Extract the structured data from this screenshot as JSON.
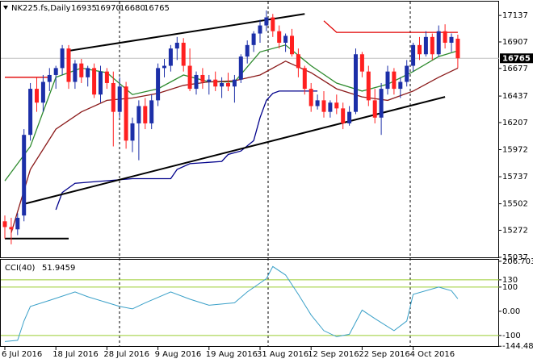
{
  "chart_data": {
    "type": "candlestick",
    "title": "NK225.fs,Daily",
    "up_color": "#1c2fa8",
    "down_color": "#ff2020",
    "categories": [
      "6 Jul 2016",
      null,
      null,
      null,
      null,
      null,
      null,
      null,
      "18 Jul 2016",
      null,
      null,
      null,
      null,
      null,
      null,
      null,
      "28 Jul 2016",
      null,
      null,
      null,
      null,
      null,
      null,
      null,
      "9 Aug 2016",
      null,
      null,
      null,
      null,
      null,
      null,
      null,
      "19 Aug 2016",
      null,
      null,
      null,
      null,
      null,
      null,
      null,
      "31 Aug 2016",
      null,
      null,
      null,
      null,
      null,
      null,
      null,
      "12 Sep 2016",
      null,
      null,
      null,
      null,
      null,
      null,
      null,
      "22 Sep 2016",
      null,
      null,
      null,
      null,
      null,
      null,
      null,
      "4 Oct 2016",
      null,
      null,
      null,
      null,
      null,
      null,
      null
    ],
    "open": [
      15350,
      15300,
      15280,
      15400,
      16100,
      16500,
      16380,
      16560,
      16620,
      16680,
      16850,
      16560,
      16720,
      16600,
      16680,
      16450,
      16650,
      16550,
      16300,
      16520,
      16050,
      16200,
      16350,
      16200,
      16400,
      16680,
      16700,
      16850,
      16900,
      16700,
      16500,
      16620,
      16560,
      16580,
      16520,
      16550,
      16520,
      16580,
      16780,
      16880,
      16980,
      17050,
      17120,
      17000,
      16900,
      16960,
      16800,
      16680,
      16500,
      16350,
      16400,
      16300,
      16380,
      16330,
      16200,
      16300,
      16800,
      16650,
      16400,
      16250,
      16500,
      16650,
      16500,
      16560,
      16700,
      16880,
      16800,
      16950,
      16800,
      17000,
      16900,
      16935
    ],
    "high": [
      15400,
      15380,
      15420,
      16150,
      16550,
      16600,
      16620,
      16680,
      16700,
      16880,
      16880,
      16750,
      16760,
      16700,
      16720,
      16700,
      16680,
      16650,
      16600,
      16560,
      16250,
      16400,
      16420,
      16450,
      16720,
      16760,
      16880,
      16950,
      16940,
      16850,
      16650,
      16680,
      16620,
      16650,
      16600,
      16640,
      16620,
      16800,
      16920,
      17000,
      17100,
      17180,
      17150,
      17050,
      16980,
      17020,
      16850,
      16700,
      16550,
      16450,
      16480,
      16400,
      16450,
      16380,
      16350,
      16850,
      16820,
      16700,
      16500,
      16550,
      16700,
      16680,
      16600,
      16750,
      16900,
      16950,
      17000,
      16980,
      17050,
      17060,
      16980,
      16970
    ],
    "low": [
      15200,
      15150,
      15230,
      15350,
      16050,
      16300,
      16300,
      16480,
      16500,
      16620,
      16500,
      16500,
      16550,
      16520,
      16420,
      16380,
      16500,
      16000,
      16250,
      15980,
      15950,
      15880,
      16150,
      16150,
      16350,
      16600,
      16650,
      16750,
      16650,
      16480,
      16450,
      16500,
      16450,
      16480,
      16420,
      16480,
      16380,
      16550,
      16720,
      16820,
      16900,
      17000,
      16950,
      16850,
      16820,
      16780,
      16600,
      16450,
      16300,
      16320,
      16250,
      16250,
      16280,
      16150,
      16180,
      16280,
      16600,
      16350,
      16200,
      16100,
      16450,
      16450,
      16420,
      16520,
      16650,
      16750,
      16780,
      16750,
      16780,
      16850,
      16820,
      16680
    ],
    "close": [
      15300,
      15280,
      15380,
      16100,
      16500,
      16380,
      16560,
      16620,
      16680,
      16850,
      16560,
      16720,
      16600,
      16680,
      16450,
      16650,
      16550,
      16300,
      16520,
      16050,
      16200,
      16350,
      16200,
      16400,
      16680,
      16700,
      16850,
      16900,
      16700,
      16500,
      16620,
      16560,
      16580,
      16520,
      16550,
      16520,
      16580,
      16780,
      16880,
      16980,
      17050,
      17120,
      17000,
      16900,
      16960,
      16800,
      16680,
      16500,
      16350,
      16400,
      16300,
      16380,
      16330,
      16200,
      16300,
      16800,
      16650,
      16400,
      16250,
      16500,
      16650,
      16500,
      16560,
      16700,
      16880,
      16800,
      16950,
      16800,
      17000,
      16900,
      16950,
      16765
    ],
    "ylim": [
      15037,
      17257
    ],
    "yticks": [
      17137,
      16907,
      16677,
      16437,
      16207,
      15972,
      15737,
      15502,
      15272,
      15037
    ],
    "lines": [
      {
        "color": "#2e8b2e",
        "x": [
          0,
          4,
          8,
          12,
          16,
          20,
          24,
          28,
          32,
          36,
          40,
          44,
          48,
          52,
          56,
          60,
          64,
          68,
          71
        ],
        "values": [
          15700,
          16000,
          16600,
          16680,
          16640,
          16450,
          16500,
          16620,
          16560,
          16560,
          16820,
          16880,
          16700,
          16550,
          16480,
          16540,
          16650,
          16780,
          16830
        ]
      },
      {
        "color": "#8b1a1a",
        "x": [
          1,
          4,
          8,
          12,
          16,
          20,
          24,
          28,
          32,
          36,
          40,
          44,
          48,
          52,
          56,
          60,
          64,
          68,
          71
        ],
        "values": [
          15250,
          15800,
          16150,
          16300,
          16400,
          16420,
          16460,
          16530,
          16560,
          16570,
          16620,
          16740,
          16640,
          16500,
          16430,
          16400,
          16480,
          16600,
          16680
        ]
      },
      {
        "color": "#00008b",
        "x": [
          8,
          9,
          11,
          20,
          26,
          27,
          29,
          34,
          35,
          37,
          39,
          40,
          41,
          42,
          43,
          49
        ],
        "values": [
          15450,
          15600,
          15680,
          15720,
          15720,
          15800,
          15850,
          15870,
          15930,
          15960,
          16050,
          16250,
          16400,
          16460,
          16480,
          16480
        ]
      },
      {
        "color": "#e00000",
        "x": [
          0,
          7
        ],
        "values": [
          16600,
          16600
        ]
      },
      {
        "color": "#e00000",
        "x": [
          50,
          52,
          71
        ],
        "values": [
          17090,
          16990,
          16990
        ]
      },
      {
        "color": "#000000",
        "x": [
          3,
          69
        ],
        "values": [
          15500,
          16430
        ]
      },
      {
        "color": "#000000",
        "x": [
          10,
          47
        ],
        "values": [
          16830,
          17150
        ]
      },
      {
        "color": "#000000",
        "x": [
          0,
          10
        ],
        "values": [
          15200,
          15200
        ]
      }
    ],
    "indicator": {
      "title": "CCI(40)",
      "color": "#3aa0c8",
      "level_color": "#9acd32",
      "x": [
        0,
        2,
        3,
        4,
        7,
        11,
        13,
        18,
        20,
        22,
        26,
        29,
        32,
        36,
        38,
        41,
        42,
        44,
        46,
        48,
        50,
        52,
        54,
        56,
        58,
        61,
        63,
        64,
        68,
        70,
        71
      ],
      "values": [
        -125,
        -120,
        -40,
        20,
        45,
        80,
        60,
        20,
        10,
        35,
        80,
        50,
        25,
        35,
        80,
        135,
        185,
        150,
        70,
        -15,
        -80,
        -105,
        -95,
        5,
        -30,
        -80,
        -40,
        70,
        100,
        85,
        51.9459
      ],
      "ylim": [
        -147,
        213
      ],
      "yticks": [
        206.7035,
        130,
        100,
        {
          "value": 0,
          "label": "0.00"
        },
        -100,
        -144.486
      ],
      "levels": [
        130,
        100,
        -100
      ]
    }
  }
}
